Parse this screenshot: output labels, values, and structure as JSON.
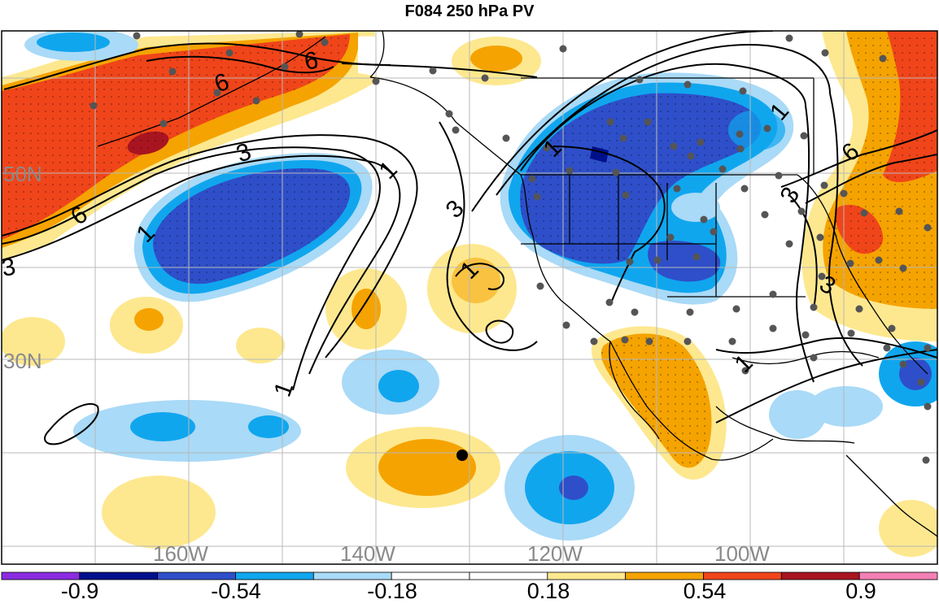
{
  "title": "F084 250 hPa PV",
  "lat_labels": [
    "50N",
    "30N"
  ],
  "lon_labels": [
    "160W",
    "140W",
    "120W",
    "100W"
  ],
  "contour_labels": [
    "6",
    "6",
    "6",
    "6",
    "3",
    "3",
    "3",
    "3",
    "3",
    "1",
    "1",
    "1",
    "1",
    "1",
    "1",
    "1"
  ],
  "colorbar": {
    "labels": [
      "-0.9",
      "-0.54",
      "-0.18",
      "0.18",
      "0.54",
      "0.9"
    ],
    "colors": [
      "#8a2be2",
      "#000f8c",
      "#2e4fc9",
      "#10a6ee",
      "#a9daf7",
      "#ffffff",
      "#ffffff",
      "#fde88f",
      "#f5a300",
      "#f0451a",
      "#a81520",
      "#f47fb5"
    ]
  },
  "colors": {
    "strong_negative": "#2e4fc9",
    "negative": "#10a6ee",
    "weak_negative": "#a9daf7",
    "weak_positive": "#fde88f",
    "positive": "#f5a300",
    "strong_positive": "#f0451a",
    "very_strong_positive": "#a81520",
    "deep_negative": "#000f8c"
  },
  "map": {
    "projection": "cylindrical",
    "extent": "NE Pacific and North America",
    "grid": true,
    "station_markers": true,
    "highlighted_point_marker": true
  }
}
